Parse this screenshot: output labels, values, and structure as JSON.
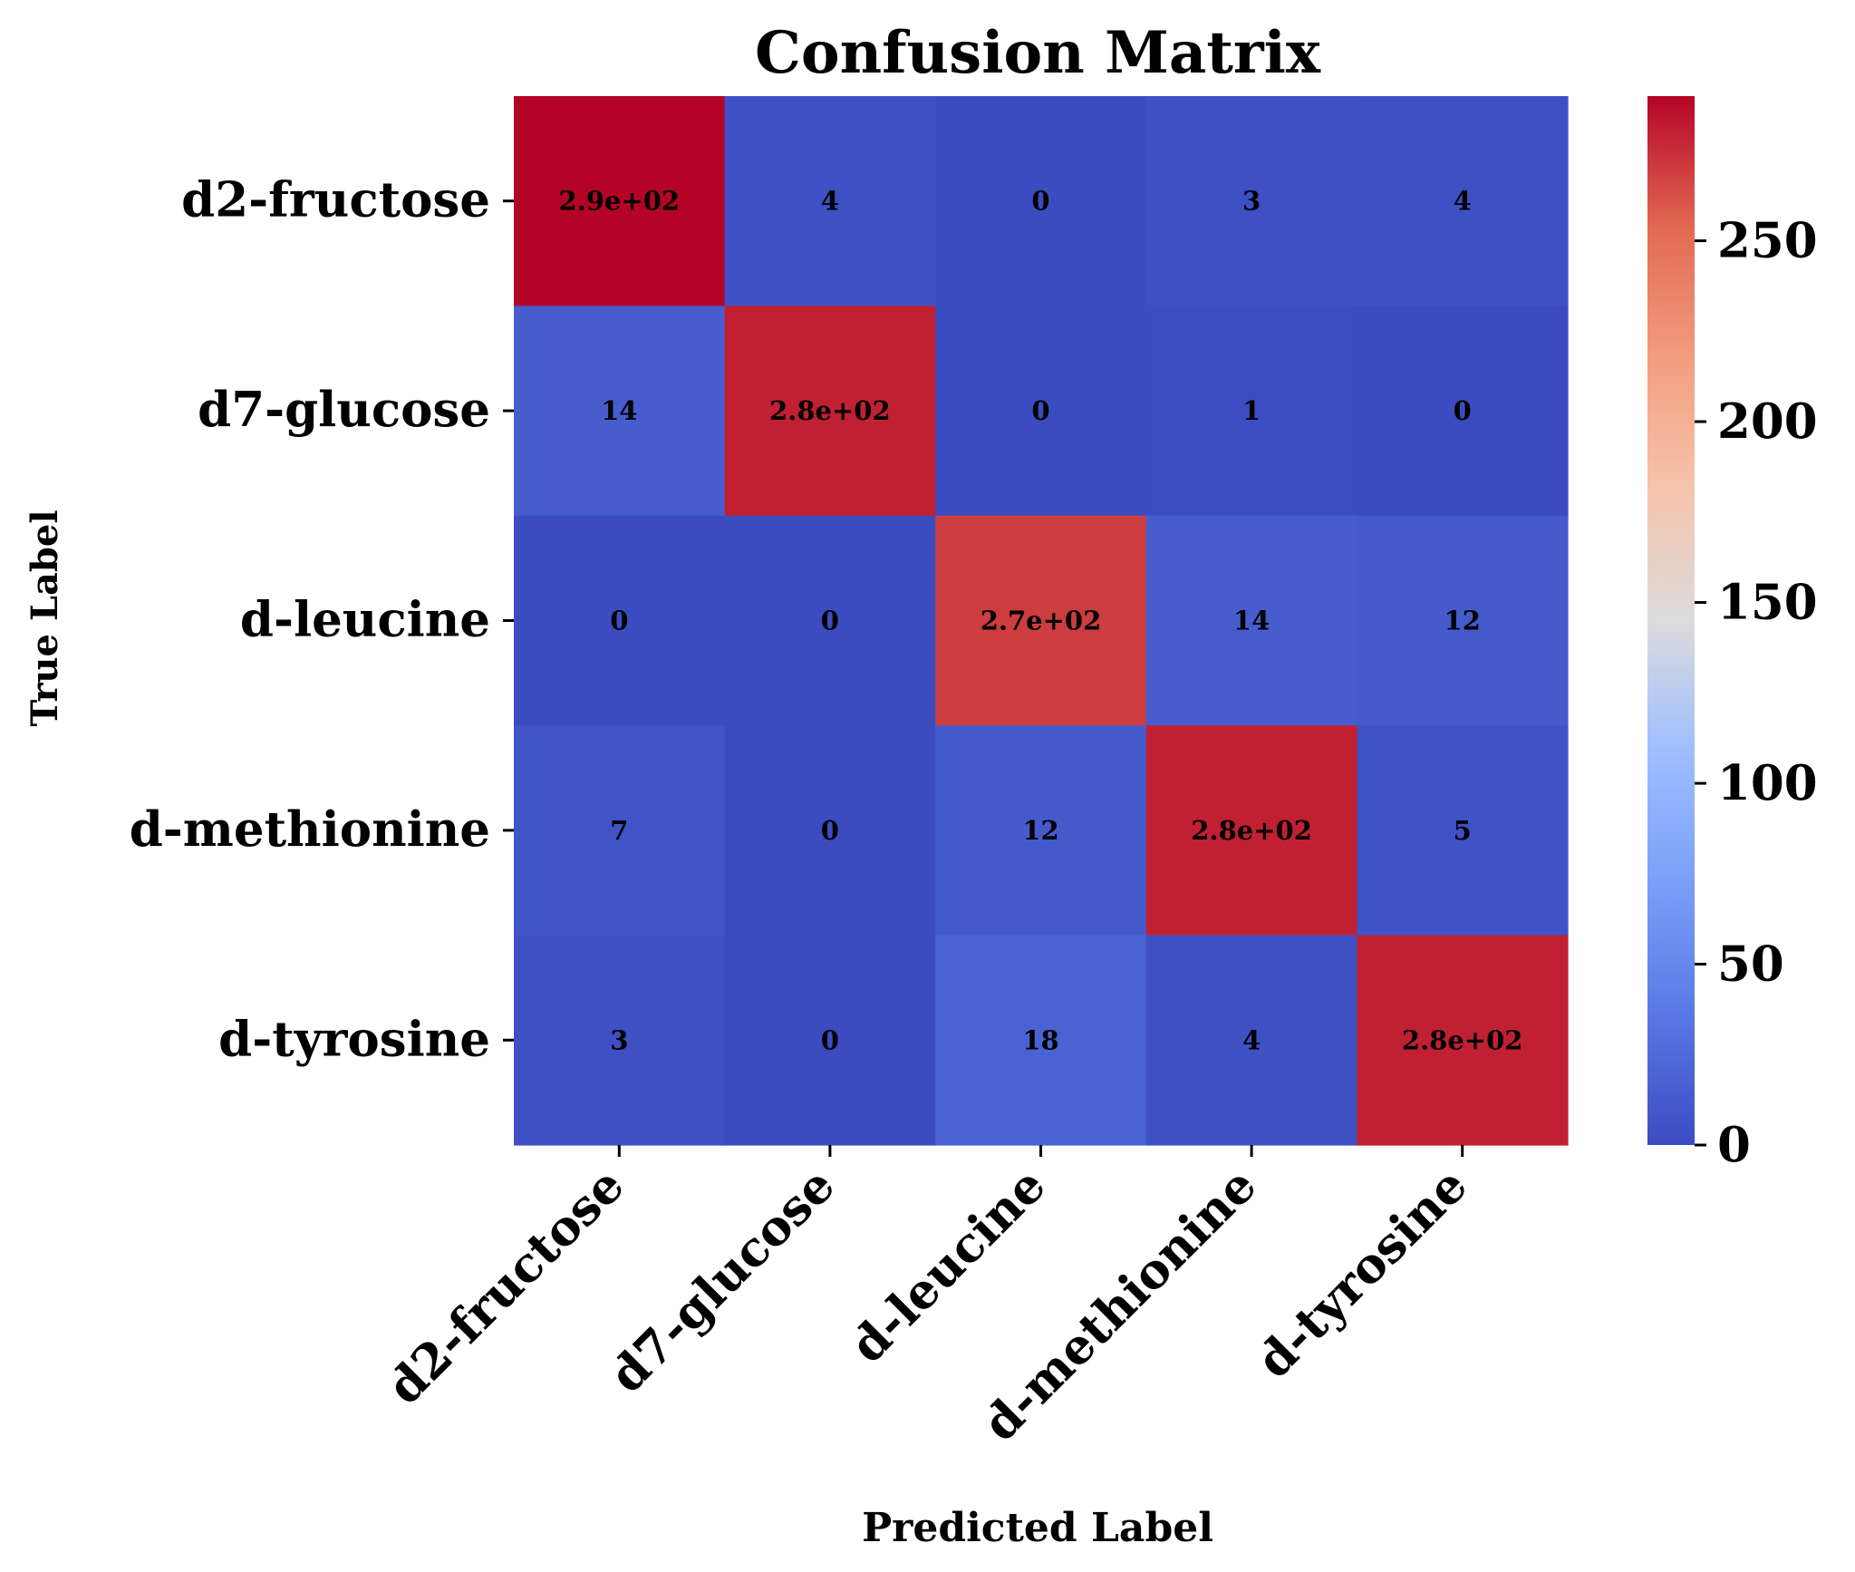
{
  "chart_data": {
    "type": "heatmap",
    "title": "Confusion Matrix",
    "xlabel": "Predicted Label",
    "ylabel": "True Label",
    "x_categories": [
      "d2-fructose",
      "d7-glucose",
      "d-leucine",
      "d-methionine",
      "d-tyrosine"
    ],
    "y_categories": [
      "d2-fructose",
      "d7-glucose",
      "d-leucine",
      "d-methionine",
      "d-tyrosine"
    ],
    "matrix": [
      [
        290,
        4,
        0,
        3,
        4
      ],
      [
        14,
        280,
        0,
        1,
        0
      ],
      [
        0,
        0,
        270,
        14,
        12
      ],
      [
        7,
        0,
        12,
        280,
        5
      ],
      [
        3,
        0,
        18,
        4,
        280
      ]
    ],
    "annotations": [
      [
        "2.9e+02",
        "4",
        "0",
        "3",
        "4"
      ],
      [
        "14",
        "2.8e+02",
        "0",
        "1",
        "0"
      ],
      [
        "0",
        "0",
        "2.7e+02",
        "14",
        "12"
      ],
      [
        "7",
        "0",
        "12",
        "2.8e+02",
        "5"
      ],
      [
        "3",
        "0",
        "18",
        "4",
        "2.8e+02"
      ]
    ],
    "colormap": "coolwarm",
    "vmin": 0,
    "vmax": 290,
    "colorbar_ticks": [
      "0",
      "50",
      "100",
      "150",
      "200",
      "250"
    ],
    "colorbar_tick_values": [
      0,
      50,
      100,
      150,
      200,
      250
    ],
    "annotation_color": "#ffffff"
  }
}
